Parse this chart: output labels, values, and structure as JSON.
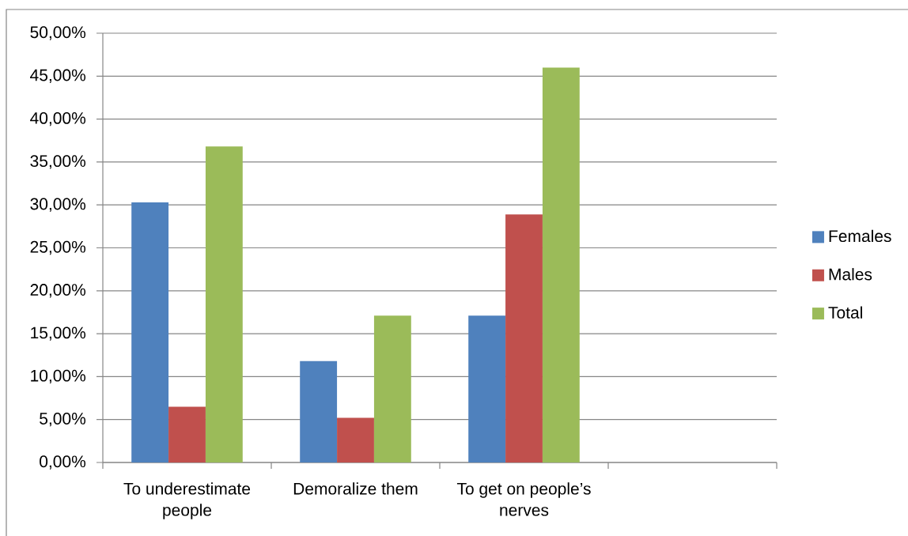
{
  "chart_data": {
    "type": "bar",
    "categories": [
      "To underestimate people",
      "Demoralize them",
      "To get on people’s nerves",
      null
    ],
    "series": [
      {
        "name": "Females",
        "color": "#4f81bd",
        "values": [
          30.3,
          11.8,
          17.1,
          null
        ]
      },
      {
        "name": "Males",
        "color": "#c0504d",
        "values": [
          6.5,
          5.2,
          28.9,
          null
        ]
      },
      {
        "name": "Total",
        "color": "#9bbb59",
        "values": [
          36.8,
          17.1,
          46.0,
          null
        ]
      }
    ],
    "ylim": [
      0,
      50
    ],
    "yticks": [
      {
        "value": 0,
        "label": "0,00%"
      },
      {
        "value": 5,
        "label": "5,00%"
      },
      {
        "value": 10,
        "label": "10,00%"
      },
      {
        "value": 15,
        "label": "15,00%"
      },
      {
        "value": 20,
        "label": "20,00%"
      },
      {
        "value": 25,
        "label": "25,00%"
      },
      {
        "value": 30,
        "label": "30,00%"
      },
      {
        "value": 35,
        "label": "35,00%"
      },
      {
        "value": 40,
        "label": "40,00%"
      },
      {
        "value": 45,
        "label": "45,00%"
      },
      {
        "value": 50,
        "label": "50,00%"
      }
    ],
    "grid": "y",
    "legend": "right"
  }
}
